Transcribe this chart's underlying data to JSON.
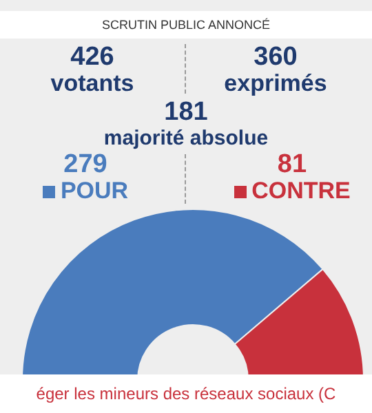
{
  "chart_data": {
    "type": "donut",
    "title": "SCRUTIN PUBLIC ANNONCÉ",
    "categories": [
      "POUR",
      "CONTRE"
    ],
    "values": [
      279,
      81
    ],
    "colors": [
      "#4a7cbd",
      "#c8313c"
    ],
    "data_labels": true,
    "legend": "top",
    "annotations": [
      "426",
      "votants",
      "360",
      "exprimés",
      "181",
      "majorité absolue",
      "éger les mineurs des réseaux sociaux (C"
    ]
  }
}
